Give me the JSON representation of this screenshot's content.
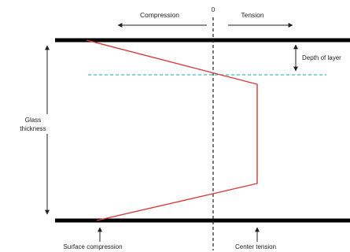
{
  "labels": {
    "zero": "0",
    "compression": "Compression",
    "tension": "Tension",
    "depth_of_layer": "Depth of layer",
    "glass_thickness_line1": "Glass",
    "glass_thickness_line2": "thickness",
    "surface_compression": "Surface compression",
    "center_tension": "Center tension"
  },
  "colors": {
    "surfaces": "#000000",
    "profile": "#d93a3a",
    "depth_line": "#33c4b4",
    "arrows": "#222222"
  }
}
